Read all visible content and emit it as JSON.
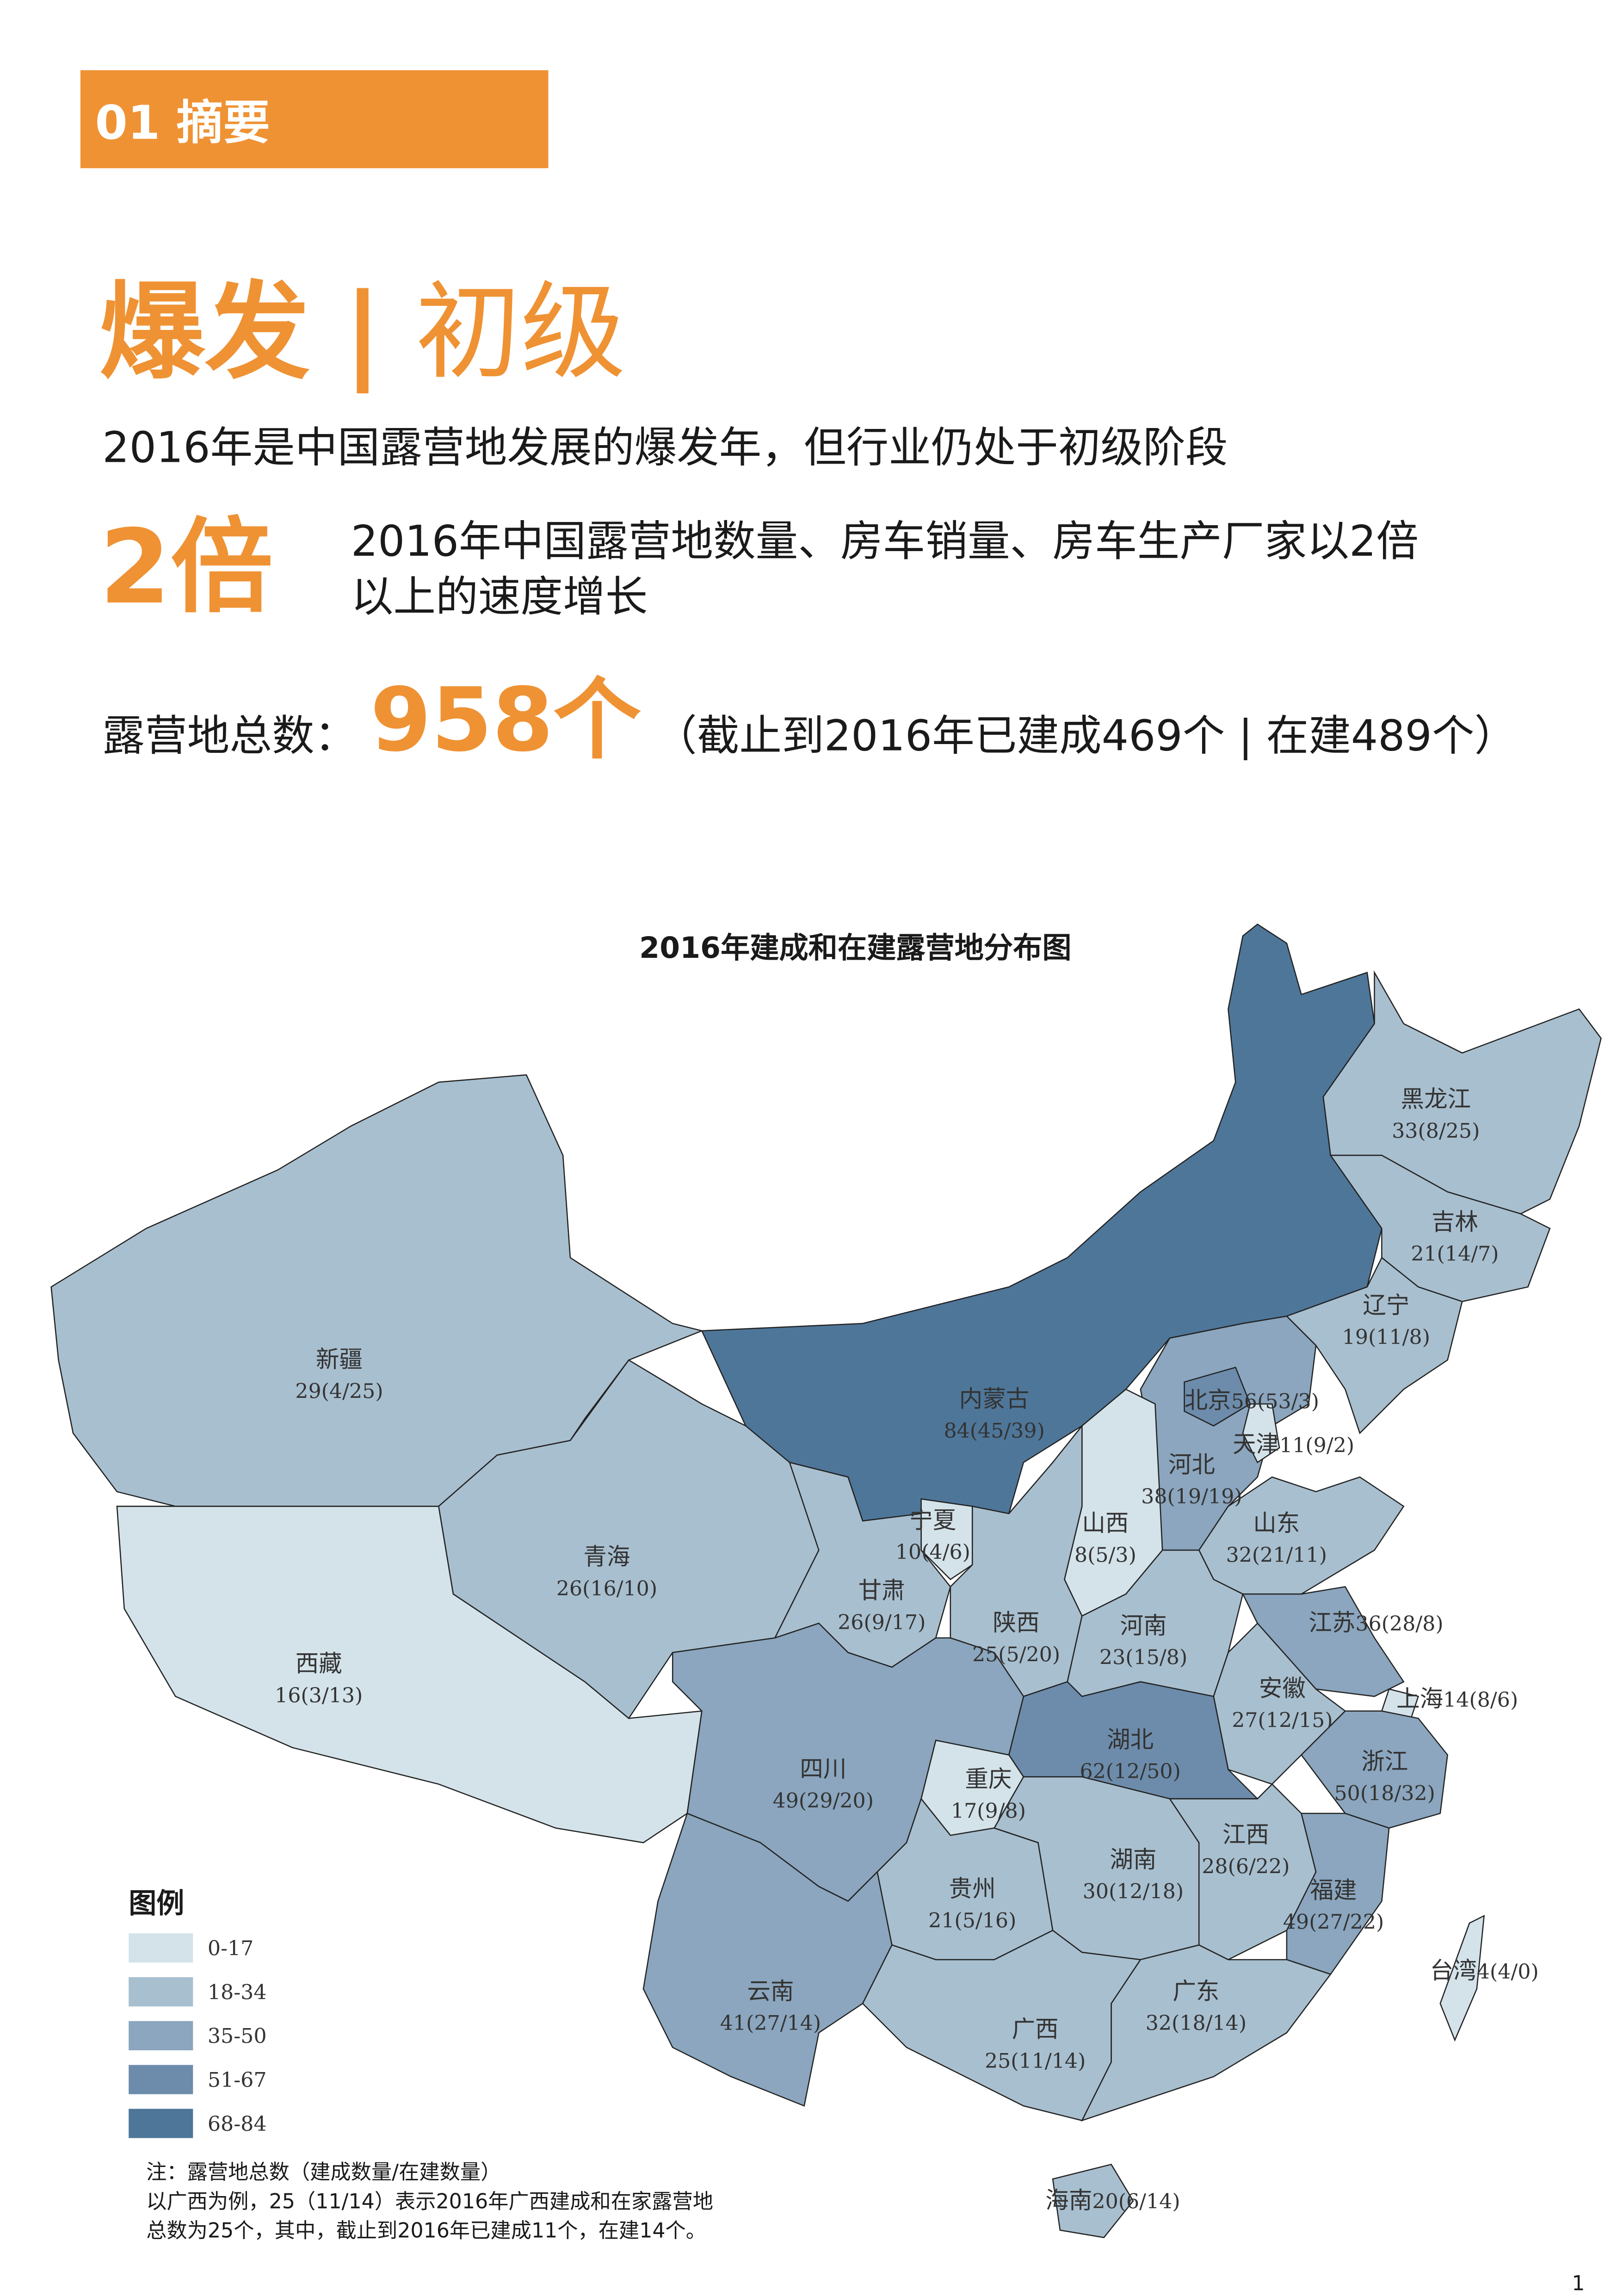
{
  "header": {
    "tag": "01 摘要"
  },
  "headline": {
    "emphasis": "爆发",
    "separator": "|",
    "stage": "初级"
  },
  "summary": "2016年是中国露营地发展的爆发年，但行业仍处于初级阶段",
  "growth": {
    "figure": "2倍",
    "text_lines": [
      "2016年中国露营地数量、房车销量、房车生产厂家以2倍",
      "以上的速度增长"
    ]
  },
  "total": {
    "label": "露营地总数：",
    "figure": "958个",
    "detail": "（截止到2016年已建成469个 | 在建489个）"
  },
  "map": {
    "title": "2016年建成和在建露营地分布图",
    "legend": {
      "title": "图例",
      "items": [
        {
          "label": "0-17",
          "color": "#d4e3ea"
        },
        {
          "label": "18-34",
          "color": "#a8bfcf"
        },
        {
          "label": "35-50",
          "color": "#8ba6be"
        },
        {
          "label": "51-67",
          "color": "#6d8cab"
        },
        {
          "label": "68-84",
          "color": "#4e7699"
        }
      ]
    },
    "provinces": [
      {
        "name": "新疆",
        "label": "29(4/25)",
        "color": "#a8bfcf"
      },
      {
        "name": "西藏",
        "label": "16(3/13)",
        "color": "#d4e3ea"
      },
      {
        "name": "青海",
        "label": "26(16/10)",
        "color": "#a8bfcf"
      },
      {
        "name": "内蒙古",
        "label": "84(45/39)",
        "color": "#4e7699"
      },
      {
        "name": "黑龙江",
        "label": "33(8/25)",
        "color": "#a8bfcf"
      },
      {
        "name": "吉林",
        "label": "21(14/7)",
        "color": "#a8bfcf"
      },
      {
        "name": "辽宁",
        "label": "19(11/8)",
        "color": "#a8bfcf"
      },
      {
        "name": "河北",
        "label": "38(19/19)",
        "color": "#8ba6be"
      },
      {
        "name": "北京",
        "label": "56(53/3)",
        "color": "#6d8cab"
      },
      {
        "name": "天津",
        "label": "11(9/2)",
        "color": "#d4e3ea"
      },
      {
        "name": "山西",
        "label": "8(5/3)",
        "color": "#d4e3ea"
      },
      {
        "name": "宁夏",
        "label": "10(4/6)",
        "color": "#d4e3ea"
      },
      {
        "name": "甘肃",
        "label": "26(9/17)",
        "color": "#a8bfcf"
      },
      {
        "name": "陕西",
        "label": "25(5/20)",
        "color": "#a8bfcf"
      },
      {
        "name": "山东",
        "label": "32(21/11)",
        "color": "#a8bfcf"
      },
      {
        "name": "河南",
        "label": "23(15/8)",
        "color": "#a8bfcf"
      },
      {
        "name": "江苏",
        "label": "36(28/8)",
        "color": "#8ba6be"
      },
      {
        "name": "上海",
        "label": "14(8/6)",
        "color": "#d4e3ea"
      },
      {
        "name": "安徽",
        "label": "27(12/15)",
        "color": "#a8bfcf"
      },
      {
        "name": "浙江",
        "label": "50(18/32)",
        "color": "#8ba6be"
      },
      {
        "name": "湖北",
        "label": "62(12/50)",
        "color": "#6d8cab"
      },
      {
        "name": "重庆",
        "label": "17(9/8)",
        "color": "#d4e3ea"
      },
      {
        "name": "四川",
        "label": "49(29/20)",
        "color": "#8ba6be"
      },
      {
        "name": "云南",
        "label": "41(27/14)",
        "color": "#8ba6be"
      },
      {
        "name": "贵州",
        "label": "21(5/16)",
        "color": "#a8bfcf"
      },
      {
        "name": "湖南",
        "label": "30(12/18)",
        "color": "#a8bfcf"
      },
      {
        "name": "江西",
        "label": "28(6/22)",
        "color": "#a8bfcf"
      },
      {
        "name": "福建",
        "label": "49(27/22)",
        "color": "#8ba6be"
      },
      {
        "name": "广东",
        "label": "32(18/14)",
        "color": "#a8bfcf"
      },
      {
        "name": "广西",
        "label": "25(11/14)",
        "color": "#a8bfcf"
      },
      {
        "name": "海南",
        "label": "20(6/14)",
        "color": "#a8bfcf"
      },
      {
        "name": "台湾",
        "label": "4(4/0)",
        "color": "#d4e3ea"
      }
    ],
    "note": [
      "注：露营地总数（建成数量/在建数量）",
      "以广西为例，25（11/14）表示2016年广西建成和在家露营地",
      "总数为25个，其中，截止到2016年已建成11个，在建14个。"
    ]
  },
  "page_number": "1"
}
